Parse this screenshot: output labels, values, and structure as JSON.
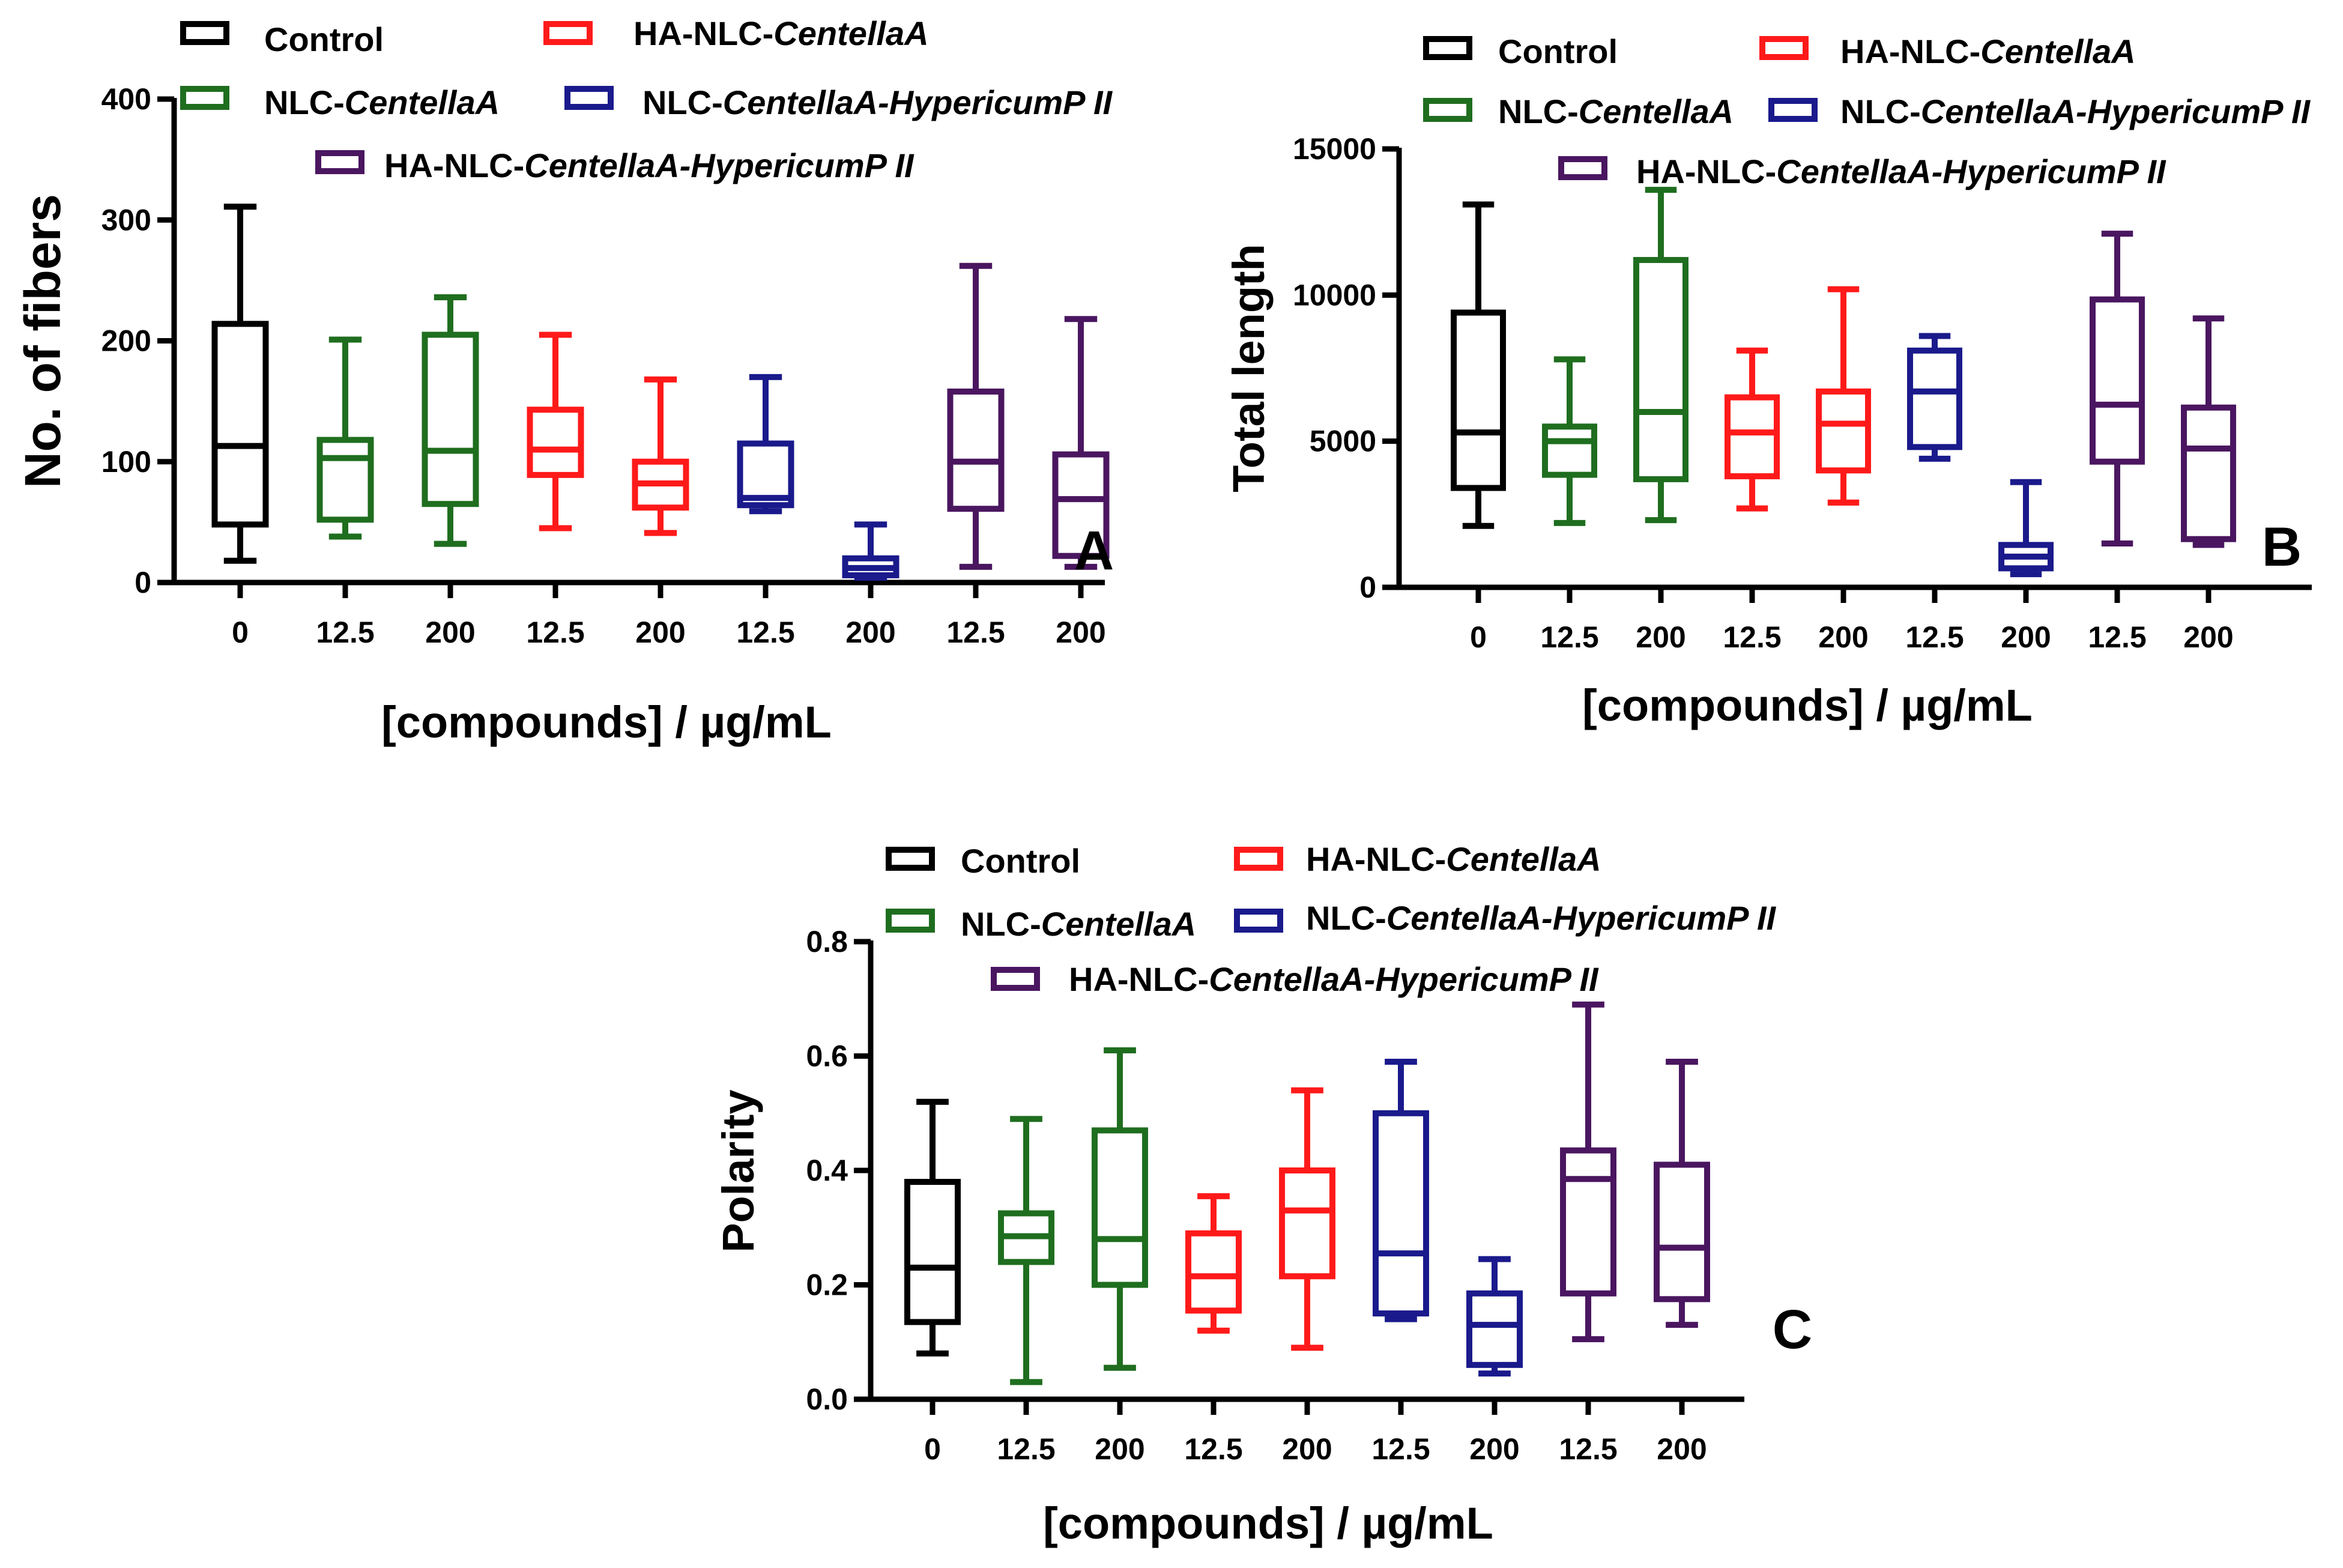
{
  "figure": {
    "series_colors": {
      "Control": "#000000",
      "NLC-CentellaA": "#1f6e1f",
      "HA-NLC-CentellaA": "#ff1a1a",
      "NLC-CentellaA-HypericumP II": "#1a1a8c",
      "HA-NLC-CentellaA-HypericumP II": "#4a1660"
    }
  },
  "chart_data": [
    {
      "panel": "A",
      "type": "boxplot",
      "ylabel": "No. of fibers",
      "xlabel": "[compounds]  /  µg/mL",
      "ylim": [
        0,
        400
      ],
      "yticks": [
        0,
        100,
        200,
        300,
        400
      ],
      "legend": [
        {
          "prefix": "Control",
          "italic": ""
        },
        {
          "prefix": "HA-NLC-",
          "italic": "CentellaA"
        },
        {
          "prefix": "NLC-",
          "italic": "CentellaA"
        },
        {
          "prefix": "NLC-",
          "italic": "CentellaA-HypericumP II"
        },
        {
          "prefix": "HA-NLC-",
          "italic": "CentellaA-HypericumP II"
        }
      ],
      "boxes": [
        {
          "label": "0",
          "series": "Control",
          "min": 18,
          "q1": 48,
          "median": 113,
          "q3": 214,
          "max": 311
        },
        {
          "label": "12.5",
          "series": "NLC-CentellaA",
          "min": 38,
          "q1": 52,
          "median": 103,
          "q3": 118,
          "max": 201
        },
        {
          "label": "200",
          "series": "NLC-CentellaA",
          "min": 32,
          "q1": 65,
          "median": 109,
          "q3": 205,
          "max": 236
        },
        {
          "label": "12.5",
          "series": "HA-NLC-CentellaA",
          "min": 45,
          "q1": 89,
          "median": 110,
          "q3": 143,
          "max": 205
        },
        {
          "label": "200",
          "series": "HA-NLC-CentellaA",
          "min": 41,
          "q1": 62,
          "median": 82,
          "q3": 100,
          "max": 168
        },
        {
          "label": "12.5",
          "series": "NLC-CentellaA-HypericumP II",
          "min": 59,
          "q1": 64,
          "median": 70,
          "q3": 115,
          "max": 170
        },
        {
          "label": "200",
          "series": "NLC-CentellaA-HypericumP II",
          "min": 4,
          "q1": 6,
          "median": 12,
          "q3": 20,
          "max": 48
        },
        {
          "label": "12.5",
          "series": "HA-NLC-CentellaA-HypericumP II",
          "min": 13,
          "q1": 61,
          "median": 100,
          "q3": 158,
          "max": 262
        },
        {
          "label": "200",
          "series": "HA-NLC-CentellaA-HypericumP II",
          "min": 13,
          "q1": 22,
          "median": 69,
          "q3": 106,
          "max": 218
        }
      ]
    },
    {
      "panel": "B",
      "type": "boxplot",
      "ylabel": "Total length",
      "xlabel": "[compounds]  /  µg/mL",
      "ylim": [
        0,
        15000
      ],
      "yticks": [
        0,
        5000,
        10000,
        15000
      ],
      "legend": [
        {
          "prefix": "Control",
          "italic": ""
        },
        {
          "prefix": "HA-NLC-",
          "italic": "CentellaA"
        },
        {
          "prefix": "NLC-",
          "italic": "CentellaA"
        },
        {
          "prefix": "NLC-",
          "italic": "CentellaA-HypericumP II"
        },
        {
          "prefix": "HA-NLC-",
          "italic": "CentellaA-HypericumP II"
        }
      ],
      "boxes": [
        {
          "label": "0",
          "series": "Control",
          "min": 2100,
          "q1": 3400,
          "median": 5300,
          "q3": 9400,
          "max": 13100
        },
        {
          "label": "12.5",
          "series": "NLC-CentellaA",
          "min": 2200,
          "q1": 3850,
          "median": 5000,
          "q3": 5500,
          "max": 7800
        },
        {
          "label": "200",
          "series": "NLC-CentellaA",
          "min": 2300,
          "q1": 3700,
          "median": 6000,
          "q3": 11200,
          "max": 13600
        },
        {
          "label": "12.5",
          "series": "HA-NLC-CentellaA",
          "min": 2700,
          "q1": 3800,
          "median": 5300,
          "q3": 6500,
          "max": 8100
        },
        {
          "label": "200",
          "series": "HA-NLC-CentellaA",
          "min": 2900,
          "q1": 4000,
          "median": 5600,
          "q3": 6700,
          "max": 10200
        },
        {
          "label": "12.5",
          "series": "NLC-CentellaA-HypericumP II",
          "min": 4400,
          "q1": 4800,
          "median": 6700,
          "q3": 8100,
          "max": 8600
        },
        {
          "label": "200",
          "series": "NLC-CentellaA-HypericumP II",
          "min": 450,
          "q1": 650,
          "median": 1050,
          "q3": 1450,
          "max": 3600
        },
        {
          "label": "12.5",
          "series": "HA-NLC-CentellaA-HypericumP II",
          "min": 1500,
          "q1": 4300,
          "median": 6250,
          "q3": 9850,
          "max": 12100
        },
        {
          "label": "200",
          "series": "HA-NLC-CentellaA-HypericumP II",
          "min": 1450,
          "q1": 1650,
          "median": 4750,
          "q3": 6150,
          "max": 9200
        }
      ]
    },
    {
      "panel": "C",
      "type": "boxplot",
      "ylabel": "Polarity",
      "xlabel": "[compounds]  /  µg/mL",
      "ylim": [
        0,
        0.8
      ],
      "yticks": [
        "0.0",
        "0.2",
        "0.4",
        "0.6",
        "0.8"
      ],
      "legend": [
        {
          "prefix": "Control",
          "italic": ""
        },
        {
          "prefix": "HA-NLC-",
          "italic": "CentellaA"
        },
        {
          "prefix": "NLC-",
          "italic": "CentellaA"
        },
        {
          "prefix": "NLC-",
          "italic": "CentellaA-HypericumP II"
        },
        {
          "prefix": "HA-NLC-",
          "italic": "CentellaA-HypericumP II"
        }
      ],
      "boxes": [
        {
          "label": "0",
          "series": "Control",
          "min": 0.08,
          "q1": 0.135,
          "median": 0.23,
          "q3": 0.38,
          "max": 0.52
        },
        {
          "label": "12.5",
          "series": "NLC-CentellaA",
          "min": 0.03,
          "q1": 0.24,
          "median": 0.285,
          "q3": 0.325,
          "max": 0.49
        },
        {
          "label": "200",
          "series": "NLC-CentellaA",
          "min": 0.055,
          "q1": 0.2,
          "median": 0.28,
          "q3": 0.47,
          "max": 0.61
        },
        {
          "label": "12.5",
          "series": "HA-NLC-CentellaA",
          "min": 0.12,
          "q1": 0.155,
          "median": 0.215,
          "q3": 0.29,
          "max": 0.355
        },
        {
          "label": "200",
          "series": "HA-NLC-CentellaA",
          "min": 0.09,
          "q1": 0.215,
          "median": 0.33,
          "q3": 0.4,
          "max": 0.54
        },
        {
          "label": "12.5",
          "series": "NLC-CentellaA-HypericumP II",
          "min": 0.14,
          "q1": 0.15,
          "median": 0.255,
          "q3": 0.5,
          "max": 0.59
        },
        {
          "label": "200",
          "series": "NLC-CentellaA-HypericumP II",
          "min": 0.045,
          "q1": 0.06,
          "median": 0.13,
          "q3": 0.185,
          "max": 0.245
        },
        {
          "label": "12.5",
          "series": "HA-NLC-CentellaA-HypericumP II",
          "min": 0.105,
          "q1": 0.185,
          "median": 0.385,
          "q3": 0.435,
          "max": 0.69
        },
        {
          "label": "200",
          "series": "HA-NLC-CentellaA-HypericumP II",
          "min": 0.13,
          "q1": 0.175,
          "median": 0.265,
          "q3": 0.41,
          "max": 0.59
        }
      ]
    }
  ]
}
